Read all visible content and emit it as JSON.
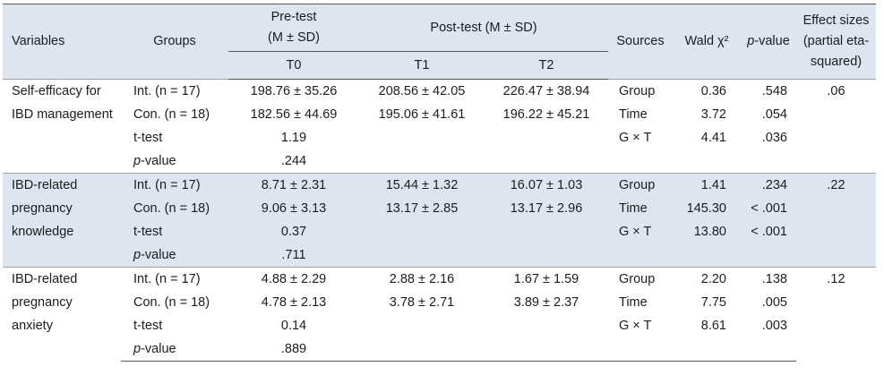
{
  "headers": {
    "variables": "Variables",
    "groups": "Groups",
    "pretest_line1": "Pre-test",
    "pretest_line2": "(M ± SD)",
    "posttest": "Post-test (M ± SD)",
    "sources": "Sources",
    "wald": "Wald χ²",
    "pvalue_italic": "p",
    "pvalue_rest": "-value",
    "effect_line1": "Effect sizes",
    "effect_line2": "(partial eta-",
    "effect_line3": "squared)",
    "t0": "T0",
    "t1": "T1",
    "t2": "T2"
  },
  "rows": [
    {
      "variable_lines": [
        "Self-efficacy for",
        "IBD management"
      ],
      "effect": ".06",
      "groups": [
        "Int. (n = 17)",
        "Con. (n = 18)",
        "t-test",
        "-value"
      ],
      "t0": [
        "198.76 ± 35.26",
        "182.56 ± 44.69",
        "1.19",
        ".244"
      ],
      "t1": [
        "208.56 ± 42.05",
        "195.06 ± 41.61",
        "",
        ""
      ],
      "t2": [
        "226.47 ± 38.94",
        "196.22 ± 45.21",
        "",
        ""
      ],
      "sources": [
        "Group",
        "Time",
        "G × T",
        ""
      ],
      "wald": [
        "0.36",
        "3.72",
        "4.41",
        ""
      ],
      "p": [
        ".548",
        ".054",
        ".036",
        ""
      ]
    },
    {
      "variable_lines": [
        "IBD-related",
        "pregnancy",
        "knowledge"
      ],
      "effect": ".22",
      "groups": [
        "Int. (n = 17)",
        "Con. (n = 18)",
        "t-test",
        "-value"
      ],
      "t0": [
        "8.71 ± 2.31",
        "9.06 ± 3.13",
        "0.37",
        ".711"
      ],
      "t1": [
        "15.44 ± 1.32",
        "13.17 ± 2.85",
        "",
        ""
      ],
      "t2": [
        "16.07 ± 1.03",
        "13.17 ± 2.96",
        "",
        ""
      ],
      "sources": [
        "Group",
        "Time",
        "G × T",
        ""
      ],
      "wald": [
        "1.41",
        "145.30",
        "13.80",
        ""
      ],
      "p": [
        ".234",
        "< .001",
        "< .001",
        ""
      ]
    },
    {
      "variable_lines": [
        "IBD-related",
        "pregnancy",
        "anxiety"
      ],
      "effect": ".12",
      "groups": [
        "Int. (n = 17)",
        "Con. (n = 18)",
        "t-test",
        "-value"
      ],
      "t0": [
        "4.88 ± 2.29",
        "4.78 ± 2.13",
        "0.14",
        ".889"
      ],
      "t1": [
        "2.88 ± 2.16",
        "3.78 ± 2.71",
        "",
        ""
      ],
      "t2": [
        "1.67 ± 1.59",
        "3.89 ± 2.37",
        "",
        ""
      ],
      "sources": [
        "Group",
        "Time",
        "G × T",
        ""
      ],
      "wald": [
        "2.20",
        "7.75",
        "8.61",
        ""
      ],
      "p": [
        ".138",
        ".005",
        ".003",
        ""
      ]
    }
  ]
}
